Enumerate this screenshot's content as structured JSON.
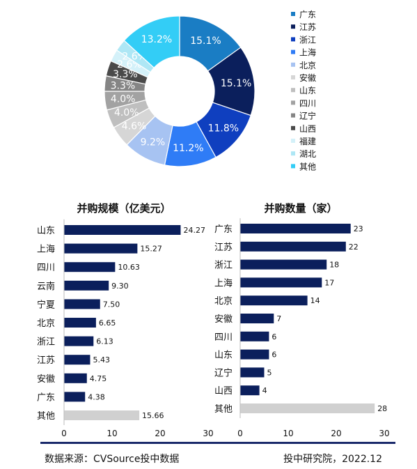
{
  "chart_data": [
    {
      "type": "pie",
      "title": "",
      "categories": [
        "广东",
        "江苏",
        "浙江",
        "上海",
        "北京",
        "安徽",
        "山东",
        "四川",
        "辽宁",
        "山西",
        "福建",
        "湖北",
        "其他"
      ],
      "values": [
        15.1,
        15.1,
        11.8,
        11.2,
        9.2,
        4.6,
        4.0,
        4.0,
        3.3,
        3.3,
        2.6,
        2.6,
        13.2
      ],
      "labels": [
        "15.1%",
        "15.1%",
        "11.8%",
        "11.2%",
        "9.2%",
        "4.6%",
        "4.0%",
        "4.0%",
        "3.3%",
        "3.3%",
        "2.6%",
        "2.6%",
        "13.2%"
      ],
      "colors": [
        "#1a7dc4",
        "#0b1f5c",
        "#0f3fbf",
        "#2f7cf6",
        "#a7c3f2",
        "#d6d6d6",
        "#bfbfbf",
        "#a2a2a2",
        "#858585",
        "#4a4a4a",
        "#d4f1f9",
        "#aee7f5",
        "#33cdf6"
      ],
      "legend_position": "right",
      "donut": true
    },
    {
      "type": "bar",
      "orientation": "horizontal",
      "title": "并购规模（亿美元）",
      "categories": [
        "山东",
        "上海",
        "四川",
        "云南",
        "宁夏",
        "北京",
        "浙江",
        "江苏",
        "安徽",
        "广东",
        "其他"
      ],
      "values": [
        24.27,
        15.27,
        10.63,
        9.3,
        7.5,
        6.65,
        6.13,
        5.43,
        4.75,
        4.38,
        15.66
      ],
      "labels": [
        "24.27",
        "15.27",
        "10.63",
        "9.30",
        "7.50",
        "6.65",
        "6.13",
        "5.43",
        "4.75",
        "4.38",
        "15.66"
      ],
      "xlim": [
        0,
        30
      ],
      "xticks": [
        "0",
        "10",
        "20",
        "30"
      ],
      "bar_color": "#0b1f5c",
      "other_color": "#d0d0d0"
    },
    {
      "type": "bar",
      "orientation": "horizontal",
      "title": "并购数量（家）",
      "categories": [
        "广东",
        "江苏",
        "浙江",
        "上海",
        "北京",
        "安徽",
        "四川",
        "山东",
        "辽宁",
        "山西",
        "其他"
      ],
      "values": [
        23,
        22,
        18,
        17,
        14,
        7,
        6,
        6,
        5,
        4,
        28
      ],
      "labels": [
        "23",
        "22",
        "18",
        "17",
        "14",
        "7",
        "6",
        "6",
        "5",
        "4",
        "28"
      ],
      "xlim": [
        0,
        30
      ],
      "xticks": [
        "0",
        "10",
        "20",
        "30"
      ],
      "bar_color": "#0b1f5c",
      "other_color": "#d0d0d0"
    }
  ],
  "footer": {
    "source": "数据来源：CVSource投中数据",
    "credit": "投中研究院，2022.12"
  }
}
